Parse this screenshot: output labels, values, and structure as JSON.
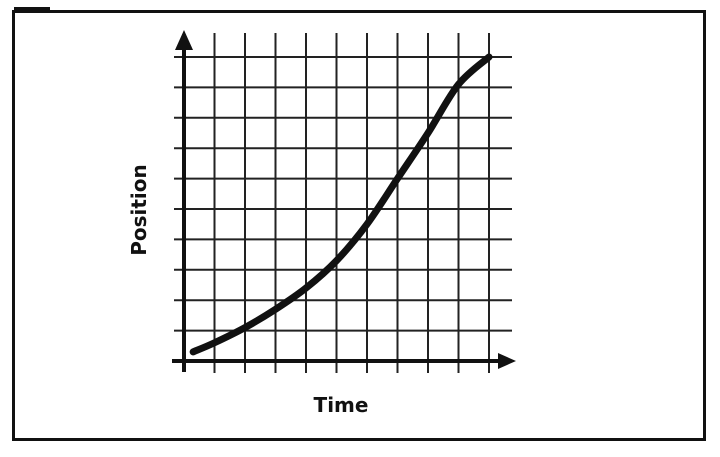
{
  "chart_data": {
    "type": "line",
    "xlabel": "Time",
    "ylabel": "Position",
    "xlim": [
      0,
      10
    ],
    "ylim": [
      0,
      10
    ],
    "grid": true,
    "x": [
      0.3,
      1,
      2,
      3,
      4,
      5,
      6,
      7,
      8,
      9,
      10
    ],
    "series": [
      {
        "values": [
          0.3,
          0.6,
          1.1,
          1.7,
          2.4,
          3.3,
          4.5,
          6.0,
          7.5,
          9.1,
          10.0
        ]
      }
    ],
    "colors": {
      "line": "#111111",
      "grid": "#222222",
      "axis": "#111111"
    }
  }
}
